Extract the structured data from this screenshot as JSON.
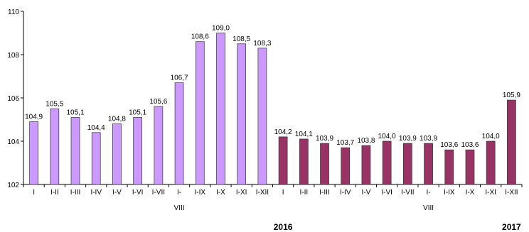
{
  "chart_data": {
    "type": "bar",
    "categories": [
      "I",
      "I-II",
      "I-III",
      "I-IV",
      "I-V",
      "I-VI",
      "I-VII",
      "I-VIII",
      "I-IX",
      "I-X",
      "I-XI",
      "I-XII",
      "I",
      "I-II",
      "I-III",
      "I-IV",
      "I-V",
      "I-VI",
      "I-VII",
      "I-VIII",
      "I-IX",
      "I-X",
      "I-XI",
      "I-XII"
    ],
    "series": [
      {
        "name": "2016",
        "color": "#cc99ff",
        "values": [
          104.9,
          105.5,
          105.1,
          104.4,
          104.8,
          105.1,
          105.6,
          106.7,
          108.6,
          109.0,
          108.5,
          108.3,
          null,
          null,
          null,
          null,
          null,
          null,
          null,
          null,
          null,
          null,
          null,
          null
        ],
        "value_labels": [
          "104,9",
          "105,5",
          "105,1",
          "104,4",
          "104,8",
          "105,1",
          "105,6",
          "106,7",
          "108,6",
          "109,0",
          "108,5",
          "108,3",
          null,
          null,
          null,
          null,
          null,
          null,
          null,
          null,
          null,
          null,
          null,
          null
        ]
      },
      {
        "name": "2017",
        "color": "#993366",
        "values": [
          null,
          null,
          null,
          null,
          null,
          null,
          null,
          null,
          null,
          null,
          null,
          null,
          104.2,
          104.1,
          103.9,
          103.7,
          103.8,
          104.0,
          103.9,
          103.9,
          103.6,
          103.6,
          104.0,
          105.9
        ],
        "value_labels": [
          null,
          null,
          null,
          null,
          null,
          null,
          null,
          null,
          null,
          null,
          null,
          null,
          "104,2",
          "104,1",
          "103,9",
          "103,7",
          "103,8",
          "104,0",
          "103,9",
          "103,9",
          "103,6",
          "103,6",
          "104,0",
          "105,9"
        ]
      }
    ],
    "ylim": [
      102,
      110
    ],
    "yticks": [
      102,
      104,
      106,
      108,
      110
    ]
  }
}
